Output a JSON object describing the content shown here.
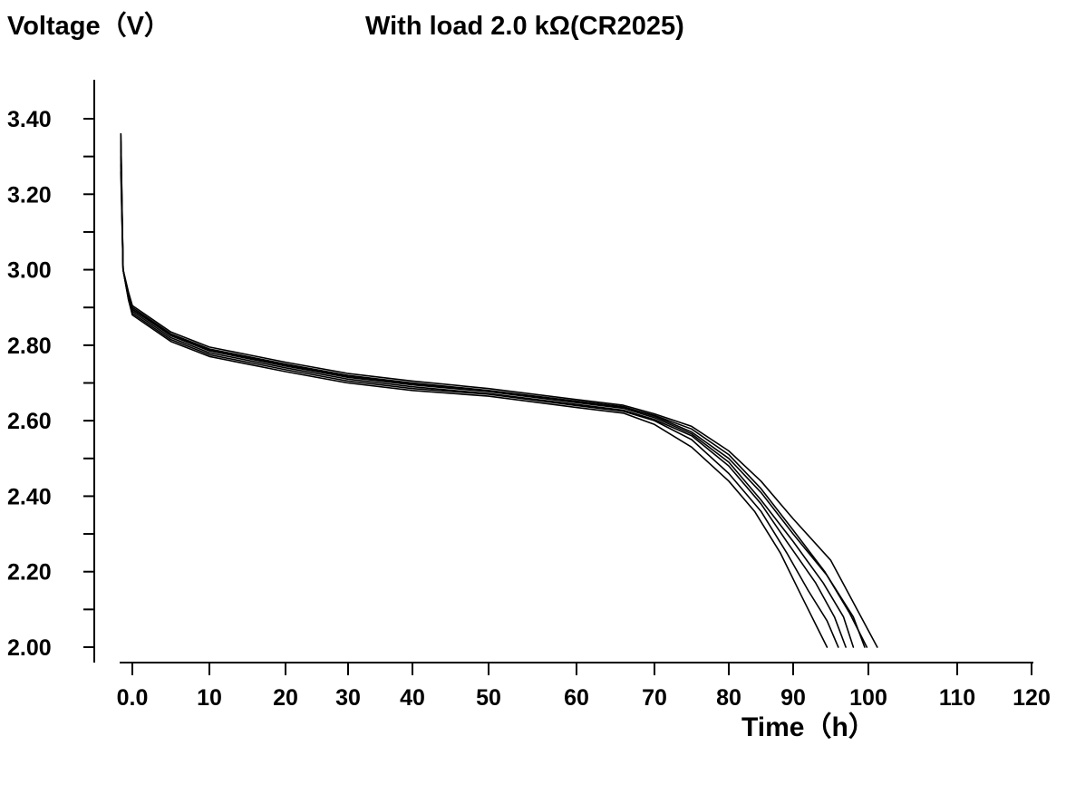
{
  "chart_data": {
    "type": "line",
    "title": "With load 2.0 kΩ(CR2025)",
    "ylabel": "Voltage（V）",
    "xlabel": "Time（h）",
    "x_ticks": [
      "0.0",
      "10",
      "20",
      "30",
      "40",
      "50",
      "60",
      "70",
      "80",
      "90",
      "100",
      "110",
      "120"
    ],
    "y_ticks": [
      "2.00",
      "2.20",
      "2.40",
      "2.60",
      "2.80",
      "3.00",
      "3.20",
      "3.40"
    ],
    "x_tick_values": [
      0,
      10,
      20,
      30,
      40,
      50,
      60,
      70,
      80,
      90,
      100,
      110,
      120
    ],
    "y_tick_values": [
      2.0,
      2.2,
      2.4,
      2.6,
      2.8,
      3.0,
      3.2,
      3.4
    ],
    "grid": false,
    "line_color": "#000000",
    "series": [
      {
        "points": [
          [
            -1.5,
            3.36
          ],
          [
            -1.2,
            3.0
          ],
          [
            -0.5,
            2.92
          ],
          [
            0,
            2.88
          ],
          [
            5,
            2.81
          ],
          [
            10,
            2.77
          ],
          [
            20,
            2.73
          ],
          [
            30,
            2.7
          ],
          [
            40,
            2.68
          ],
          [
            50,
            2.665
          ],
          [
            60,
            2.635
          ],
          [
            66,
            2.62
          ],
          [
            70,
            2.59
          ],
          [
            75,
            2.53
          ],
          [
            80,
            2.44
          ],
          [
            84,
            2.36
          ],
          [
            88,
            2.25
          ],
          [
            91,
            2.14
          ],
          [
            93,
            2.06
          ],
          [
            94.5,
            2.0
          ]
        ]
      },
      {
        "points": [
          [
            -1.5,
            3.3
          ],
          [
            -1.2,
            3.0
          ],
          [
            -0.5,
            2.92
          ],
          [
            0,
            2.885
          ],
          [
            5,
            2.815
          ],
          [
            10,
            2.775
          ],
          [
            20,
            2.735
          ],
          [
            30,
            2.705
          ],
          [
            40,
            2.685
          ],
          [
            50,
            2.67
          ],
          [
            60,
            2.64
          ],
          [
            66,
            2.625
          ],
          [
            70,
            2.6
          ],
          [
            75,
            2.55
          ],
          [
            80,
            2.46
          ],
          [
            85,
            2.36
          ],
          [
            89,
            2.25
          ],
          [
            92,
            2.15
          ],
          [
            94.5,
            2.07
          ],
          [
            96,
            2.0
          ]
        ]
      },
      {
        "points": [
          [
            -1.5,
            3.28
          ],
          [
            -1.2,
            3.0
          ],
          [
            -0.5,
            2.925
          ],
          [
            0,
            2.89
          ],
          [
            5,
            2.82
          ],
          [
            10,
            2.78
          ],
          [
            20,
            2.74
          ],
          [
            30,
            2.71
          ],
          [
            40,
            2.69
          ],
          [
            50,
            2.672
          ],
          [
            60,
            2.643
          ],
          [
            66,
            2.628
          ],
          [
            70,
            2.603
          ],
          [
            75,
            2.56
          ],
          [
            80,
            2.48
          ],
          [
            85,
            2.38
          ],
          [
            89,
            2.28
          ],
          [
            93,
            2.17
          ],
          [
            95.5,
            2.08
          ],
          [
            97,
            2.0
          ]
        ]
      },
      {
        "points": [
          [
            -1.5,
            3.32
          ],
          [
            -1.2,
            3.0
          ],
          [
            -0.5,
            2.93
          ],
          [
            0,
            2.895
          ],
          [
            5,
            2.825
          ],
          [
            10,
            2.785
          ],
          [
            20,
            2.745
          ],
          [
            30,
            2.715
          ],
          [
            40,
            2.695
          ],
          [
            50,
            2.677
          ],
          [
            60,
            2.648
          ],
          [
            66,
            2.633
          ],
          [
            70,
            2.608
          ],
          [
            75,
            2.565
          ],
          [
            80,
            2.49
          ],
          [
            85,
            2.39
          ],
          [
            90,
            2.28
          ],
          [
            94,
            2.17
          ],
          [
            96.7,
            2.08
          ],
          [
            98,
            2.0
          ]
        ]
      },
      {
        "points": [
          [
            -1.5,
            3.34
          ],
          [
            -1.2,
            3.0
          ],
          [
            -0.5,
            2.935
          ],
          [
            0,
            2.9
          ],
          [
            5,
            2.83
          ],
          [
            10,
            2.79
          ],
          [
            20,
            2.75
          ],
          [
            30,
            2.72
          ],
          [
            40,
            2.7
          ],
          [
            50,
            2.68
          ],
          [
            60,
            2.652
          ],
          [
            66,
            2.637
          ],
          [
            70,
            2.612
          ],
          [
            75,
            2.57
          ],
          [
            80,
            2.5
          ],
          [
            85,
            2.41
          ],
          [
            90,
            2.3
          ],
          [
            94.5,
            2.19
          ],
          [
            98,
            2.08
          ],
          [
            99.5,
            2.0
          ]
        ]
      },
      {
        "points": [
          [
            -1.5,
            3.36
          ],
          [
            -1.2,
            3.0
          ],
          [
            -0.5,
            2.94
          ],
          [
            0,
            2.905
          ],
          [
            5,
            2.835
          ],
          [
            10,
            2.795
          ],
          [
            20,
            2.755
          ],
          [
            30,
            2.725
          ],
          [
            40,
            2.705
          ],
          [
            50,
            2.685
          ],
          [
            60,
            2.656
          ],
          [
            66,
            2.641
          ],
          [
            70,
            2.618
          ],
          [
            75,
            2.585
          ],
          [
            80,
            2.52
          ],
          [
            85,
            2.44
          ],
          [
            90,
            2.34
          ],
          [
            95,
            2.23
          ],
          [
            98.5,
            2.1
          ],
          [
            101,
            2.0
          ]
        ]
      },
      {
        "points": [
          [
            -1.5,
            3.26
          ],
          [
            -1.2,
            3.0
          ],
          [
            -0.5,
            2.93
          ],
          [
            0,
            2.895
          ],
          [
            5,
            2.828
          ],
          [
            10,
            2.788
          ],
          [
            20,
            2.748
          ],
          [
            30,
            2.718
          ],
          [
            40,
            2.698
          ],
          [
            50,
            2.678
          ],
          [
            60,
            2.65
          ],
          [
            66,
            2.636
          ],
          [
            70,
            2.614
          ],
          [
            75,
            2.578
          ],
          [
            80,
            2.51
          ],
          [
            85,
            2.42
          ],
          [
            90,
            2.31
          ],
          [
            94.2,
            2.2
          ],
          [
            97.5,
            2.09
          ],
          [
            99.8,
            2.0
          ]
        ]
      }
    ]
  }
}
